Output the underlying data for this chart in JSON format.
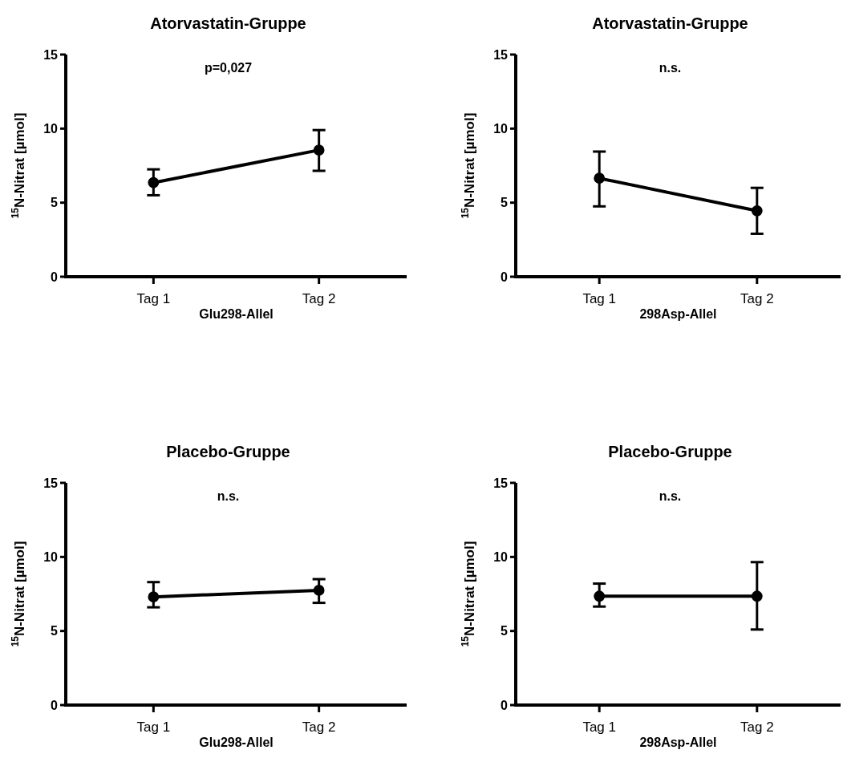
{
  "chart_data": [
    {
      "type": "line",
      "title": "Atorvastatin-Gruppe",
      "xlabel": "Glu298-Allel",
      "ylabel": "$^{15}$N-Nitrat [µmol]",
      "annotations": [
        "p=0,027"
      ],
      "categories": [
        "Tag 1",
        "Tag 2"
      ],
      "series": [
        {
          "color": "#000000",
          "values": [
            6.35,
            8.55
          ],
          "errors": [
            [
              5.5,
              7.25
            ],
            [
              7.15,
              9.9
            ]
          ]
        }
      ],
      "ylim": [
        0,
        15
      ],
      "yticks": [
        0,
        5,
        10,
        15
      ],
      "marker": "circle",
      "line_style": "solid"
    },
    {
      "type": "line",
      "title": "Atorvastatin-Gruppe",
      "xlabel": "298Asp-Allel",
      "ylabel": "$^{15}$N-Nitrat [µmol]",
      "annotations": [
        "n.s."
      ],
      "categories": [
        "Tag 1",
        "Tag 2"
      ],
      "series": [
        {
          "color": "#000000",
          "values": [
            6.65,
            4.45
          ],
          "errors": [
            [
              4.75,
              8.45
            ],
            [
              2.9,
              6.0
            ]
          ]
        }
      ],
      "ylim": [
        0,
        15
      ],
      "yticks": [
        0,
        5,
        10,
        15
      ],
      "marker": "circle",
      "line_style": "solid"
    },
    {
      "type": "line",
      "title": "Placebo-Gruppe",
      "xlabel": "Glu298-Allel",
      "ylabel": "$^{15}$N-Nitrat [µmol]",
      "annotations": [
        "n.s."
      ],
      "categories": [
        "Tag 1",
        "Tag 2"
      ],
      "series": [
        {
          "color": "#000000",
          "values": [
            7.3,
            7.75
          ],
          "errors": [
            [
              6.6,
              8.3
            ],
            [
              6.9,
              8.5
            ]
          ]
        }
      ],
      "ylim": [
        0,
        15
      ],
      "yticks": [
        0,
        5,
        10,
        15
      ],
      "marker": "circle",
      "line_style": "solid"
    },
    {
      "type": "line",
      "title": "Placebo-Gruppe",
      "xlabel": "298Asp-Allel",
      "ylabel": "$^{15}$N-Nitrat [µmol]",
      "annotations": [
        "n.s."
      ],
      "categories": [
        "Tag 1",
        "Tag 2"
      ],
      "series": [
        {
          "color": "#000000",
          "values": [
            7.35,
            7.35
          ],
          "errors": [
            [
              6.65,
              8.2
            ],
            [
              5.1,
              9.65
            ]
          ]
        }
      ],
      "ylim": [
        0,
        15
      ],
      "yticks": [
        0,
        5,
        10,
        15
      ],
      "marker": "circle",
      "line_style": "solid"
    }
  ]
}
